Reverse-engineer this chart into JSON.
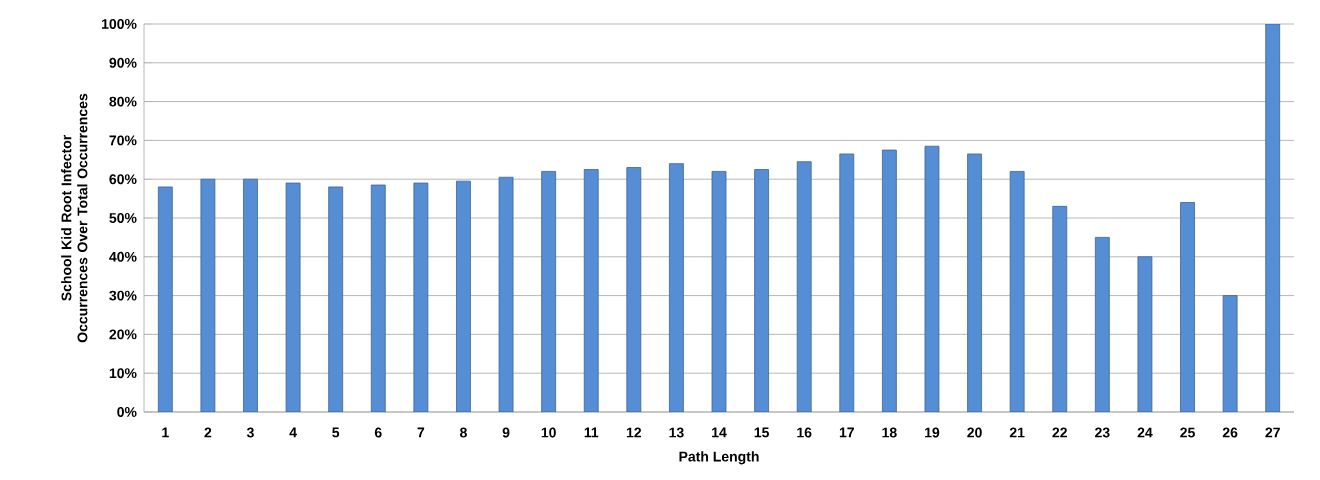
{
  "chart_data": {
    "type": "bar",
    "xlabel": "Path Length",
    "ylabel": "School Kid Root Infector Occurrences Over Total Occurrences",
    "categories": [
      "1",
      "2",
      "3",
      "4",
      "5",
      "6",
      "7",
      "8",
      "9",
      "10",
      "11",
      "12",
      "13",
      "14",
      "15",
      "16",
      "17",
      "18",
      "19",
      "20",
      "21",
      "22",
      "23",
      "24",
      "25",
      "26",
      "27"
    ],
    "values": [
      58,
      60,
      60,
      59,
      58,
      58.5,
      59,
      59.5,
      60.5,
      62,
      62.5,
      63,
      64,
      62,
      62.5,
      64.5,
      66.5,
      67.5,
      68.5,
      66.5,
      62,
      53,
      45,
      40,
      54,
      30,
      100
    ],
    "color": "#558ed5",
    "ylim": [
      0,
      100
    ],
    "yticks": [
      {
        "value": 0,
        "label": "0%"
      },
      {
        "value": 10,
        "label": "10%"
      },
      {
        "value": 20,
        "label": "20%"
      },
      {
        "value": 30,
        "label": "30%"
      },
      {
        "value": 40,
        "label": "40%"
      },
      {
        "value": 50,
        "label": "50%"
      },
      {
        "value": 60,
        "label": "60%"
      },
      {
        "value": 70,
        "label": "70%"
      },
      {
        "value": 80,
        "label": "80%"
      },
      {
        "value": 90,
        "label": "90%"
      },
      {
        "value": 100,
        "label": "100%"
      }
    ],
    "grid": "y"
  }
}
